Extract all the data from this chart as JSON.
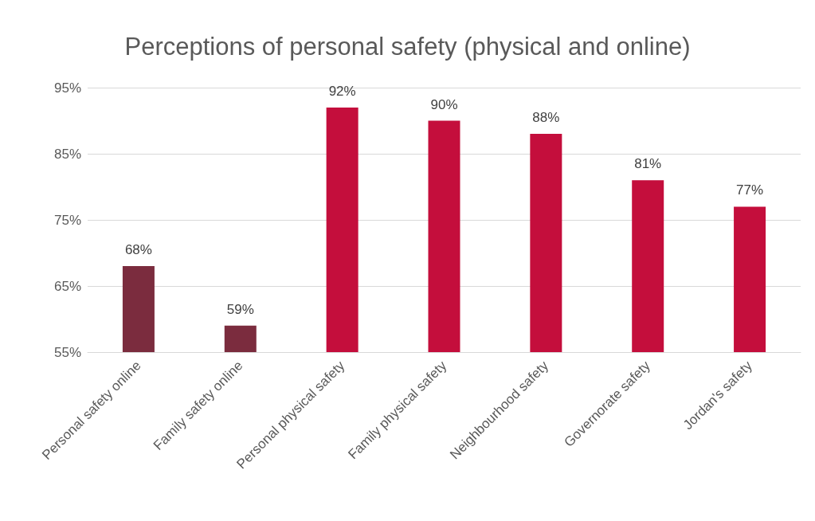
{
  "chart_data": {
    "type": "bar",
    "title": "Perceptions of personal safety (physical and online)",
    "categories": [
      "Personal safety online",
      "Family safety online",
      "Personal physical safety",
      "Family physical safety",
      "Neighbourhood safety",
      "Governorate safety",
      "Jordan's safety"
    ],
    "values": [
      68,
      59,
      92,
      90,
      88,
      81,
      77
    ],
    "colors": [
      "#7b2c3e",
      "#7b2c3e",
      "#c40e3c",
      "#c40e3c",
      "#c40e3c",
      "#c40e3c",
      "#c40e3c"
    ],
    "value_labels": [
      "68%",
      "59%",
      "92%",
      "90%",
      "88%",
      "81%",
      "77%"
    ],
    "ylim": [
      55,
      95
    ],
    "yticks": [
      {
        "value": 55,
        "label": "55%"
      },
      {
        "value": 65,
        "label": "65%"
      },
      {
        "value": 75,
        "label": "75%"
      },
      {
        "value": 85,
        "label": "85%"
      },
      {
        "value": 95,
        "label": "95%"
      }
    ],
    "grid": "y"
  }
}
